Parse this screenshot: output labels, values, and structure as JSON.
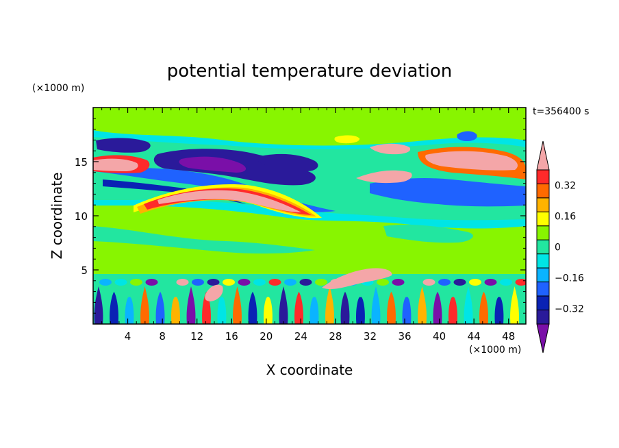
{
  "chart_data": {
    "type": "heatmap",
    "title": "potential temperature deviation",
    "time_label": "t=356400 s",
    "xlabel": "X coordinate",
    "ylabel": "Z coordinate",
    "x_unit": "(×1000 m)",
    "y_unit": "(×1000 m)",
    "xlim": [
      0,
      50
    ],
    "ylim": [
      0,
      20
    ],
    "x_ticks": [
      "4",
      "8",
      "12",
      "16",
      "20",
      "24",
      "28",
      "32",
      "36",
      "40",
      "44",
      "48"
    ],
    "y_ticks": [
      "5",
      "10",
      "15"
    ],
    "colorbar": {
      "levels": [
        -0.48,
        -0.4,
        -0.32,
        -0.24,
        -0.16,
        -0.08,
        0,
        0.08,
        0.16,
        0.24,
        0.32,
        0.4,
        0.48
      ],
      "tick_labels": [
        "0.32",
        "0.16",
        "0",
        "−0.16",
        "−0.32"
      ],
      "colors": [
        "#7a0fa8",
        "#2a1a9a",
        "#0a22b4",
        "#1f62ff",
        "#0ab4ff",
        "#00e5e5",
        "#22e6a0",
        "#88f500",
        "#ffff00",
        "#ffb300",
        "#ff6a00",
        "#ff2a2a",
        "#f4a6a8"
      ]
    }
  }
}
